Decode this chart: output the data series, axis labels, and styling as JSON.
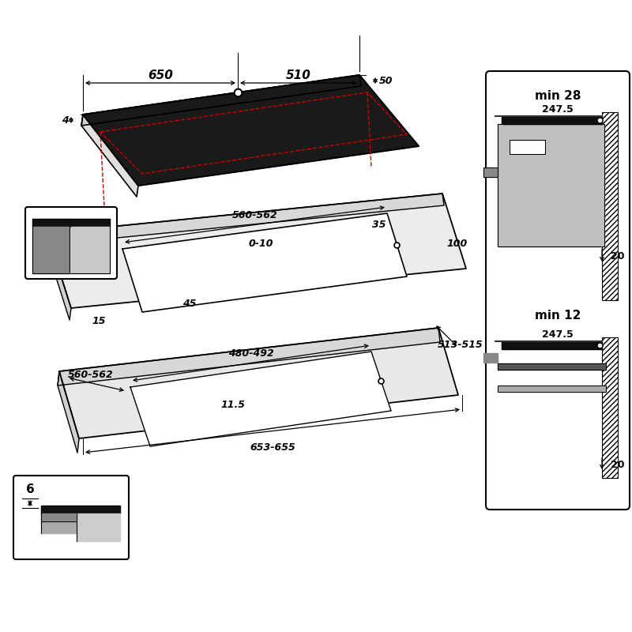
{
  "bg_color": "#ffffff",
  "line_color": "#000000",
  "red_dashed": "#cc0000",
  "figsize": [
    8.0,
    8.0
  ],
  "dpi": 100
}
